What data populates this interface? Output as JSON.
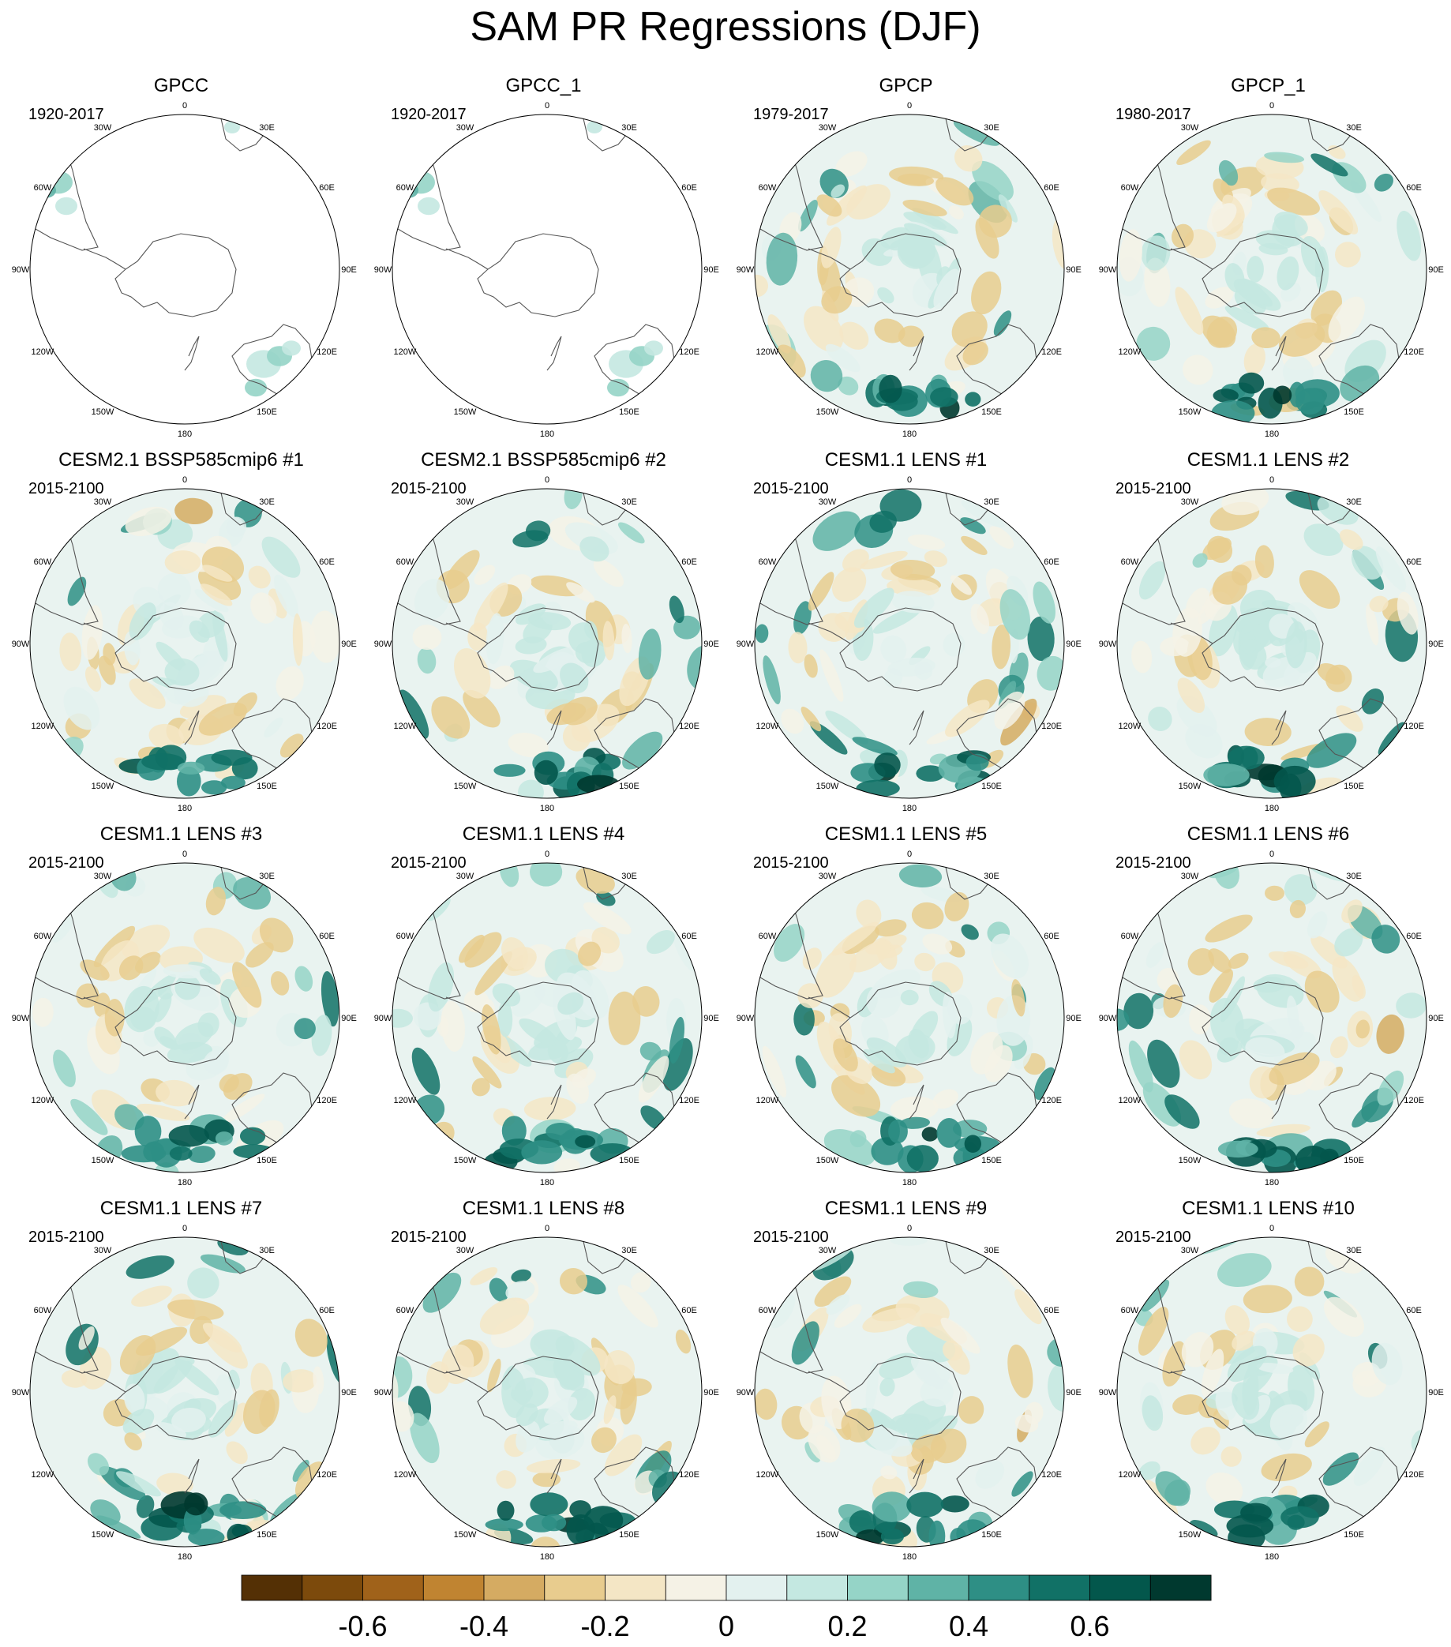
{
  "title": "SAM PR Regressions (DJF)",
  "panels": [
    {
      "title": "GPCC",
      "period": "1920-2017",
      "kind": "obs_land"
    },
    {
      "title": "GPCC_1",
      "period": "1920-2017",
      "kind": "obs_land"
    },
    {
      "title": "GPCP",
      "period": "1979-2017",
      "kind": "obs_full"
    },
    {
      "title": "GPCP_1",
      "period": "1980-2017",
      "kind": "obs_full"
    },
    {
      "title": "CESM2.1 BSSP585cmip6 #1",
      "period": "2015-2100",
      "kind": "model"
    },
    {
      "title": "CESM2.1 BSSP585cmip6 #2",
      "period": "2015-2100",
      "kind": "model"
    },
    {
      "title": "CESM1.1 LENS #1",
      "period": "2015-2100",
      "kind": "model"
    },
    {
      "title": "CESM1.1 LENS #2",
      "period": "2015-2100",
      "kind": "model"
    },
    {
      "title": "CESM1.1 LENS #3",
      "period": "2015-2100",
      "kind": "model"
    },
    {
      "title": "CESM1.1 LENS #4",
      "period": "2015-2100",
      "kind": "model"
    },
    {
      "title": "CESM1.1 LENS #5",
      "period": "2015-2100",
      "kind": "model"
    },
    {
      "title": "CESM1.1 LENS #6",
      "period": "2015-2100",
      "kind": "model"
    },
    {
      "title": "CESM1.1 LENS #7",
      "period": "2015-2100",
      "kind": "model"
    },
    {
      "title": "CESM1.1 LENS #8",
      "period": "2015-2100",
      "kind": "model"
    },
    {
      "title": "CESM1.1 LENS #9",
      "period": "2015-2100",
      "kind": "model"
    },
    {
      "title": "CESM1.1 LENS #10",
      "period": "2015-2100",
      "kind": "model"
    }
  ],
  "longitude_labels": [
    "0",
    "30E",
    "60E",
    "90E",
    "120E",
    "150E",
    "180",
    "150W",
    "120W",
    "90W",
    "60W",
    "30W"
  ],
  "colorbar": {
    "colors": [
      "#543005",
      "#7c4a0c",
      "#a0621a",
      "#c08431",
      "#d5ab62",
      "#e8cc8e",
      "#f4e6c5",
      "#f5f2e6",
      "#e3f1ef",
      "#c4e8e1",
      "#95d4c7",
      "#5fb3a6",
      "#2e8f85",
      "#117166",
      "#03574c",
      "#00392f"
    ],
    "bounds": [
      -0.8,
      -0.7,
      -0.6,
      -0.5,
      -0.4,
      -0.3,
      -0.2,
      -0.1,
      0,
      0.1,
      0.2,
      0.3,
      0.4,
      0.5,
      0.6,
      0.7,
      0.8
    ],
    "tick_labels": [
      "-0.6",
      "-0.4",
      "-0.2",
      "0",
      "0.2",
      "0.4",
      "0.6"
    ],
    "tick_values": [
      -0.6,
      -0.4,
      -0.2,
      0,
      0.2,
      0.4,
      0.6
    ]
  }
}
